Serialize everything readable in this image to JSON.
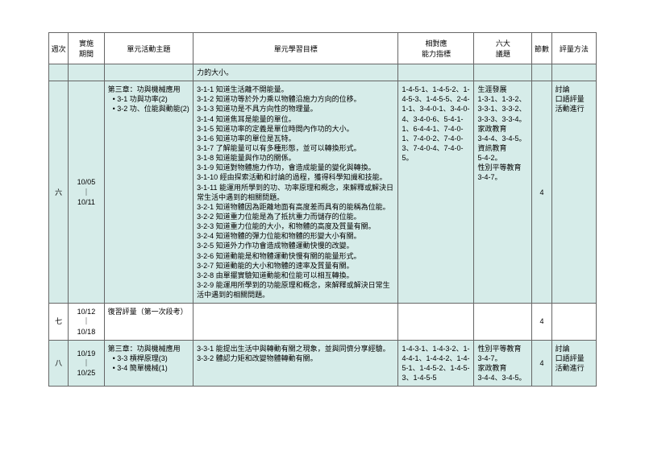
{
  "headers": {
    "week": "週次",
    "period": "實施\n期間",
    "topic": "單元活動主題",
    "objectives": "單元學習目標",
    "ability": "相對應\n能力指標",
    "six": "六大\n議題",
    "periods": "節數",
    "eval": "評量方法"
  },
  "toprow": {
    "objective_fragment": "力的大小。"
  },
  "row6": {
    "week": "六",
    "dates": "10/05\n｜\n10/11",
    "topic_title": "第三章：功與機械應用",
    "topic_items": [
      "3-1 功與功率(2)",
      "3-2 功、位能與動能(2)"
    ],
    "objectives": [
      "3-1-1 知道生活離不開能量。",
      "3-1-2 知道功等於外力乘以物體沿施力方向的位移。",
      "3-1-3 知道功是不具方向性的物理量。",
      "3-1-4 知道焦耳是能量的單位。",
      "3-1-5 知道功率的定義是單位時間內作功的大小。",
      "3-1-6 知道功率的單位是瓦特。",
      "3-1-7 了解能量可以有多種形態，並可以轉換形式。",
      "3-1-8 知道能量與作功的關係。",
      "3-1-9 知道對物體施力作功，會造成能量的變化與轉換。",
      "3-1-10 經由探索活動和討論的過程，獲得科學知識和技能。",
      "3-1-11 能運用所學到的功、功率原理和概念，來解釋或解決日常生活中遇到的相關問題。",
      "3-2-1 知道物體因為距離地面有高度差而具有的能稱為位能。",
      "3-2-2 知道重力位能是為了抵抗重力而儲存的位能。",
      "3-2-3 知道重力位能的大小，和物體的高度及質量有關。",
      "3-2-4 知道物體的彈力位能和物體的形變大小有關。",
      "3-2-5 知道外力作功會造成物體運動快慢的改變。",
      "3-2-6 知道動能是和物體運動快慢有關的能量形式。",
      "3-2-7 知道動能的大小和物體的速率及質量有關。",
      "3-2-8 由單擺實驗知道動能和位能可以相互轉換。",
      "3-2-9 能運用所學到的功能原理和概念，來解釋或解決日常生活中遇到的相關問題。"
    ],
    "ability": "1-4-5-1、1-4-5-2、1-4-5-3、1-4-5-5、2-4-1-1、3-4-0-1、3-4-0-4、3-4-0-6、5-4-1-1、6-4-4-1、7-4-0-1、7-4-0-2、7-4-0-3、7-4-0-4、7-4-0-5。",
    "six": "生涯發展\n1-3-1、1-3-2、3-3-1、3-3-2、3-3-3、3-3-4。\n家政教育\n3-4-4、3-4-5。\n資訊教育\n5-4-2。\n性別平等教育\n3-4-7。",
    "periods": "4",
    "eval": "討論\n口語評量\n活動進行"
  },
  "row7": {
    "week": "七",
    "dates": "10/12\n｜\n10/18",
    "topic": "復習評量（第一次段考）",
    "periods": "4"
  },
  "row8": {
    "week": "八",
    "dates": "10/19\n｜\n10/25",
    "topic_title": "第三章：功與機械應用",
    "topic_items": [
      "3-3 槓桿原理(3)",
      "3-4 簡單機械(1)"
    ],
    "objectives": [
      "3-3-1 能提出生活中與轉動有關之現象，並與同儕分享經驗。",
      "3-3-2 體認力矩和改變物體轉動有關。"
    ],
    "ability": "1-4-3-1、1-4-3-2、1-4-4-1、1-4-4-2、1-4-5-1、1-4-5-2、1-4-5-3、1-4-5-5",
    "six": "性別平等教育\n3-4-7。\n家政教育\n3-4-4、3-4-5。",
    "periods": "4",
    "eval": "討論\n口語評量\n活動進行"
  }
}
